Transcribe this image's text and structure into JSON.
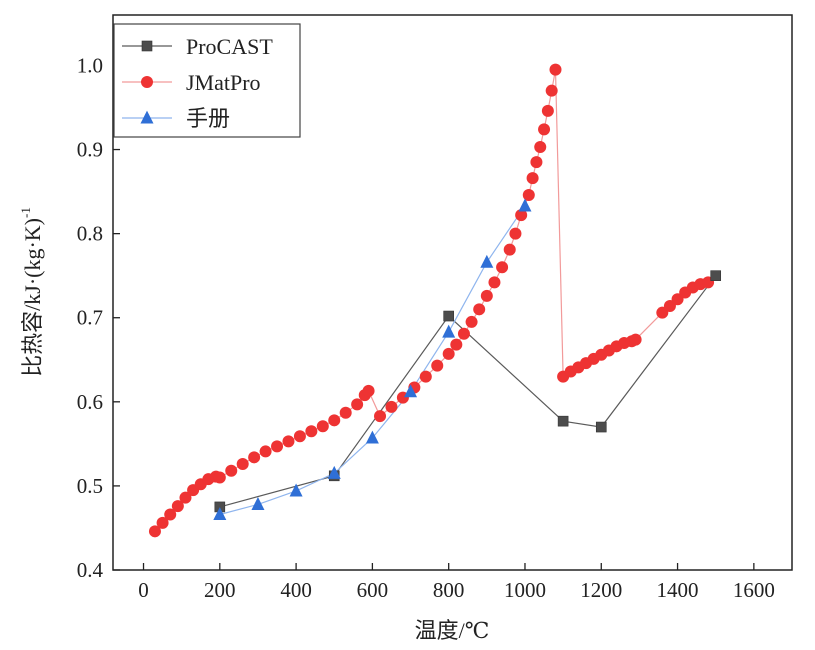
{
  "chart_data": {
    "type": "line",
    "title": "",
    "xlabel": "温度/℃",
    "ylabel": "比热容/kJ·(kg·K)-1",
    "ylabel_main": "比热容/kJ·(kg·K)",
    "ylabel_sup": "-1",
    "xlim": [
      -80,
      1700
    ],
    "ylim": [
      0.4,
      1.06
    ],
    "xticks": [
      0,
      200,
      400,
      600,
      800,
      1000,
      1200,
      1400,
      1600
    ],
    "yticks": [
      0.4,
      0.5,
      0.6,
      0.7,
      0.8,
      0.9,
      1.0
    ],
    "xtick_labels": [
      "0",
      "200",
      "400",
      "600",
      "800",
      "1000",
      "1200",
      "1400",
      "1600"
    ],
    "ytick_labels": [
      "0.4",
      "0.5",
      "0.6",
      "0.7",
      "0.8",
      "0.9",
      "1.0"
    ],
    "grid": false,
    "legend_position": "top-left",
    "series": [
      {
        "name": "ProCAST",
        "marker": "square",
        "color": "#4d4d4d",
        "line_color": "#5a5a5a",
        "x": [
          200,
          500,
          800,
          1100,
          1200,
          1500
        ],
        "y": [
          0.475,
          0.512,
          0.702,
          0.577,
          0.57,
          0.75
        ]
      },
      {
        "name": "JMatPro",
        "marker": "circle",
        "color": "#ee3333",
        "line_color": "#f29a9a",
        "x": [
          30,
          50,
          70,
          90,
          110,
          130,
          150,
          170,
          190,
          200,
          230,
          260,
          290,
          320,
          350,
          380,
          410,
          440,
          470,
          500,
          530,
          560,
          580,
          590,
          620,
          650,
          680,
          710,
          740,
          770,
          800,
          820,
          840,
          860,
          880,
          900,
          920,
          940,
          960,
          975,
          990,
          1010,
          1020,
          1030,
          1040,
          1050,
          1060,
          1070,
          1080,
          1100,
          1120,
          1140,
          1160,
          1180,
          1200,
          1220,
          1240,
          1260,
          1280,
          1290,
          1360,
          1380,
          1400,
          1420,
          1440,
          1460,
          1480
        ],
        "y": [
          0.446,
          0.456,
          0.466,
          0.476,
          0.486,
          0.495,
          0.502,
          0.508,
          0.511,
          0.51,
          0.518,
          0.526,
          0.534,
          0.541,
          0.547,
          0.553,
          0.559,
          0.565,
          0.571,
          0.578,
          0.587,
          0.597,
          0.608,
          0.613,
          0.583,
          0.594,
          0.605,
          0.617,
          0.63,
          0.643,
          0.657,
          0.668,
          0.681,
          0.695,
          0.71,
          0.726,
          0.742,
          0.76,
          0.781,
          0.8,
          0.822,
          0.846,
          0.866,
          0.885,
          0.903,
          0.924,
          0.946,
          0.97,
          0.995,
          0.63,
          0.636,
          0.641,
          0.646,
          0.651,
          0.656,
          0.661,
          0.666,
          0.67,
          0.672,
          0.674,
          0.706,
          0.714,
          0.722,
          0.73,
          0.736,
          0.74,
          0.742
        ]
      },
      {
        "name": "手册",
        "marker": "triangle",
        "color": "#2f6fd6",
        "line_color": "#8fb5ee",
        "x": [
          200,
          300,
          400,
          500,
          600,
          700,
          800,
          900,
          1000
        ],
        "y": [
          0.466,
          0.478,
          0.494,
          0.515,
          0.557,
          0.612,
          0.683,
          0.766,
          0.833
        ]
      }
    ]
  }
}
